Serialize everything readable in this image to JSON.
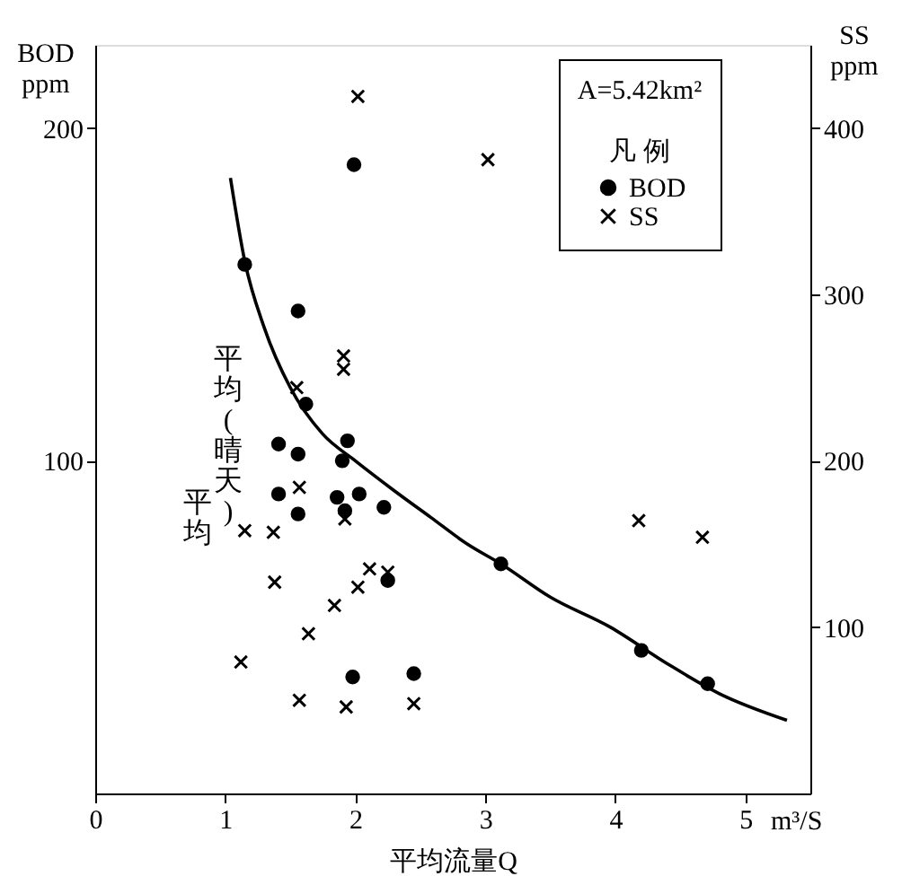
{
  "chart_data": {
    "type": "scatter",
    "xlabel": "平均流量Q",
    "ylabel": "BOD ppm",
    "y2label": "SS ppm",
    "legend_title": "凡 例",
    "legend": "top right",
    "xlim": [
      0,
      5.5
    ],
    "xticks": [
      0,
      1,
      2,
      3,
      4,
      5
    ],
    "ylim": [
      0,
      225
    ],
    "yticks": [
      100,
      200
    ],
    "y2lim": [
      0,
      450
    ],
    "y2ticks": [
      100,
      200,
      300,
      400
    ],
    "grid": false,
    "annotations": [
      "平均(晴天)",
      "平均",
      "A=5.42km²",
      "m³/S"
    ],
    "series": [
      {
        "name": "BOD",
        "marker": "circle",
        "color": "#000000",
        "x": [
          1.15,
          1.99,
          1.56,
          1.62,
          1.41,
          1.94,
          1.56,
          1.9,
          1.41,
          1.86,
          2.03,
          1.56,
          1.92,
          2.22,
          2.25,
          1.98,
          2.45,
          3.12,
          4.2,
          4.71
        ],
        "values": [
          159,
          189,
          145,
          117,
          105,
          106,
          102,
          100,
          90,
          89,
          90,
          84,
          85,
          86,
          64,
          35,
          36,
          69,
          43,
          33
        ]
      },
      {
        "name": "SS",
        "marker": "cross",
        "axis": "y2",
        "color": "#000000",
        "x": [
          2.02,
          1.55,
          1.91,
          1.91,
          3.02,
          1.57,
          1.15,
          1.37,
          1.92,
          1.38,
          2.11,
          2.25,
          2.02,
          1.84,
          1.64,
          1.12,
          1.57,
          1.93,
          2.45,
          4.18,
          4.67
        ],
        "values": [
          419,
          244,
          263,
          255,
          381,
          184,
          158,
          157,
          165,
          127,
          135,
          133,
          124,
          113,
          96,
          79,
          56,
          52,
          54,
          164,
          154
        ]
      },
      {
        "type": "line",
        "color": "#000000",
        "line_style": "solid",
        "marker": "none",
        "x": [
          1.04,
          1.15,
          1.3,
          1.5,
          1.75,
          2.0,
          2.3,
          2.58,
          2.86,
          3.12,
          3.5,
          3.96,
          4.4,
          4.8,
          5.32
        ],
        "values": [
          185,
          160,
          140,
          122,
          108,
          100,
          91,
          83,
          75,
          69,
          59,
          50,
          39,
          30,
          22
        ]
      }
    ]
  }
}
